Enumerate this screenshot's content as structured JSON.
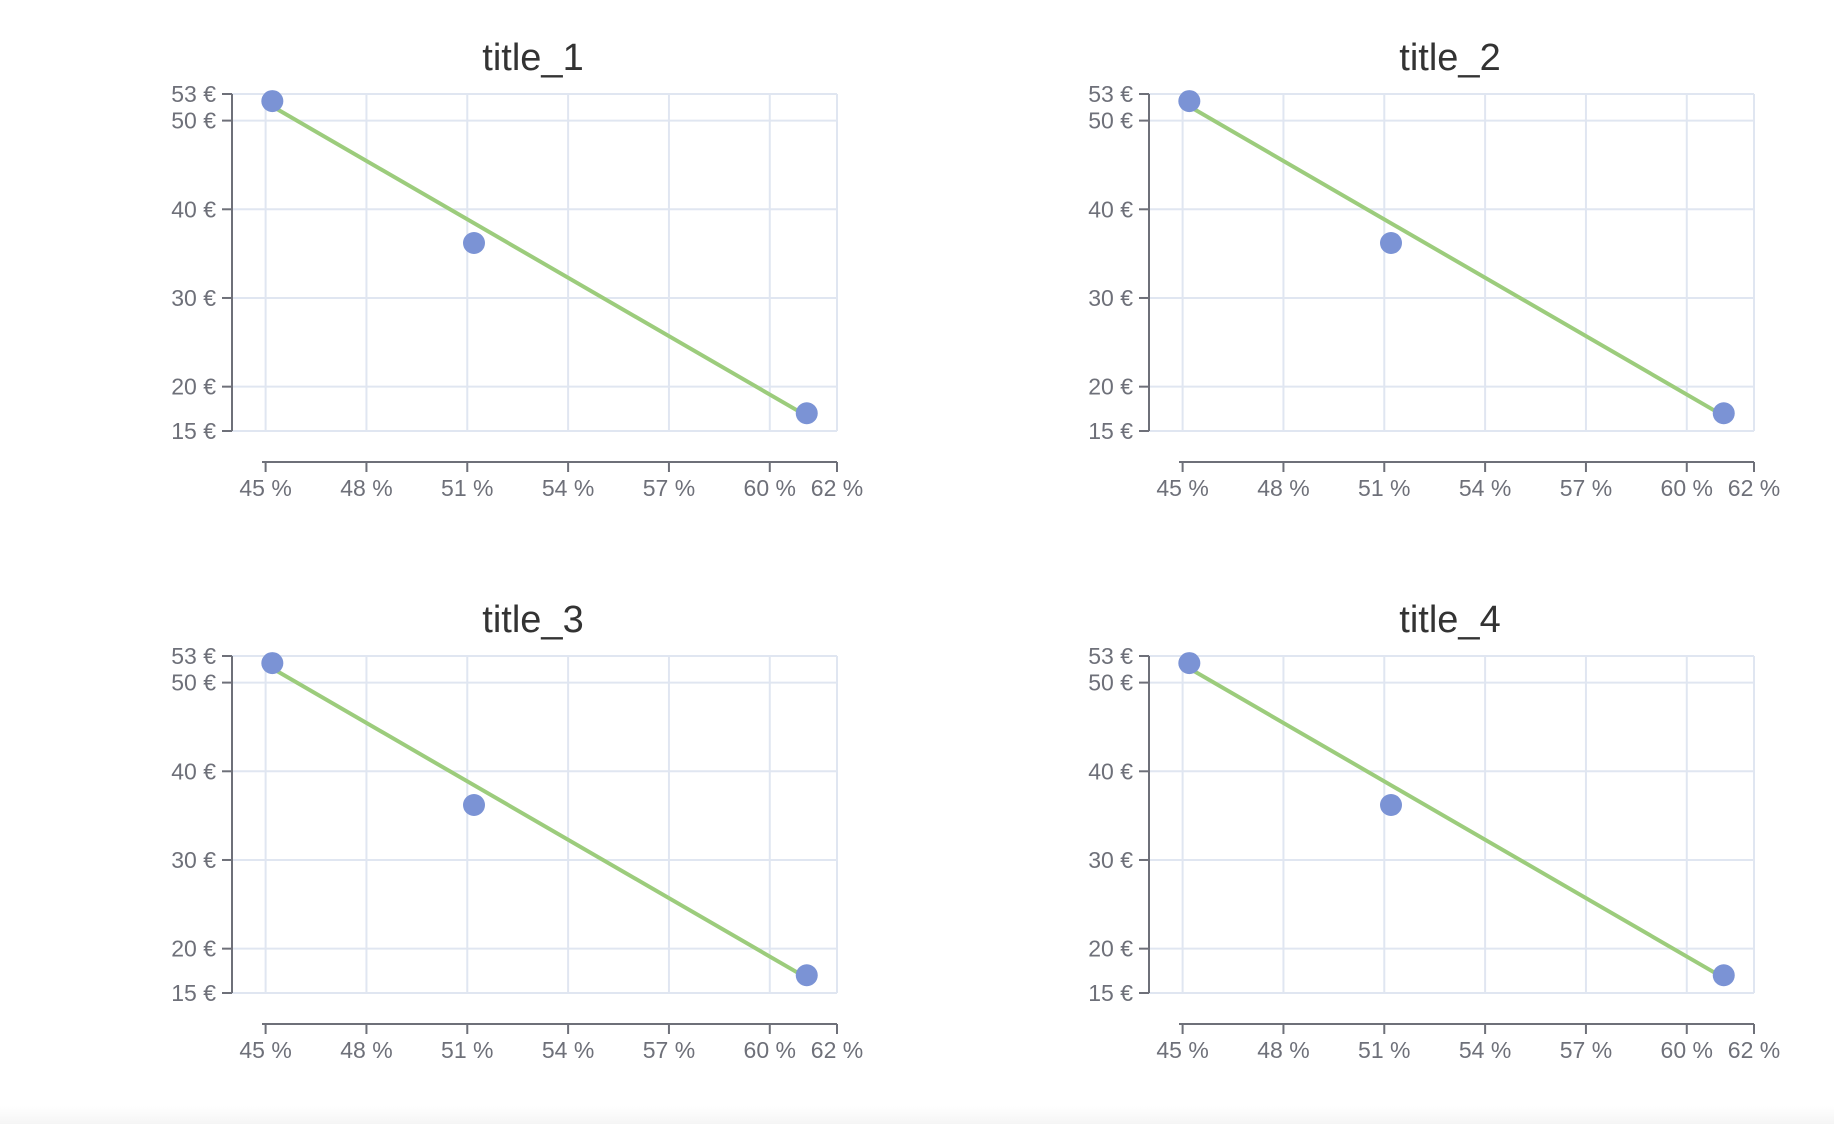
{
  "colors": {
    "point": "#7b93d5",
    "trendline": "#9ccc7c",
    "grid": "#e0e6f1",
    "axis": "#6e7079",
    "title": "#333333"
  },
  "chart_data": [
    {
      "type": "scatter",
      "title": "title_1",
      "x_ticks": [
        "45 %",
        "48 %",
        "51 %",
        "54 %",
        "57 %",
        "60 %",
        "62 %"
      ],
      "y_ticks": [
        "15 €",
        "20 €",
        "30 €",
        "40 €",
        "50 €",
        "53 €"
      ],
      "xlim": [
        44,
        62
      ],
      "ylim": [
        15,
        53
      ],
      "points": [
        {
          "x": 45.2,
          "y": 52.2
        },
        {
          "x": 51.2,
          "y": 36.2
        },
        {
          "x": 61.1,
          "y": 17.0
        }
      ],
      "trendline": [
        {
          "x": 45.2,
          "y": 51.6
        },
        {
          "x": 61.1,
          "y": 16.7
        }
      ],
      "grid": true,
      "legend": "none"
    },
    {
      "type": "scatter",
      "title": "title_2",
      "x_ticks": [
        "45 %",
        "48 %",
        "51 %",
        "54 %",
        "57 %",
        "60 %",
        "62 %"
      ],
      "y_ticks": [
        "15 €",
        "20 €",
        "30 €",
        "40 €",
        "50 €",
        "53 €"
      ],
      "xlim": [
        44,
        62
      ],
      "ylim": [
        15,
        53
      ],
      "points": [
        {
          "x": 45.2,
          "y": 52.2
        },
        {
          "x": 51.2,
          "y": 36.2
        },
        {
          "x": 61.1,
          "y": 17.0
        }
      ],
      "trendline": [
        {
          "x": 45.2,
          "y": 51.6
        },
        {
          "x": 61.1,
          "y": 16.7
        }
      ],
      "grid": true,
      "legend": "none"
    },
    {
      "type": "scatter",
      "title": "title_3",
      "x_ticks": [
        "45 %",
        "48 %",
        "51 %",
        "54 %",
        "57 %",
        "60 %",
        "62 %"
      ],
      "y_ticks": [
        "15 €",
        "20 €",
        "30 €",
        "40 €",
        "50 €",
        "53 €"
      ],
      "xlim": [
        44,
        62
      ],
      "ylim": [
        15,
        53
      ],
      "points": [
        {
          "x": 45.2,
          "y": 52.2
        },
        {
          "x": 51.2,
          "y": 36.2
        },
        {
          "x": 61.1,
          "y": 17.0
        }
      ],
      "trendline": [
        {
          "x": 45.2,
          "y": 51.6
        },
        {
          "x": 61.1,
          "y": 16.7
        }
      ],
      "grid": true,
      "legend": "none"
    },
    {
      "type": "scatter",
      "title": "title_4",
      "x_ticks": [
        "45 %",
        "48 %",
        "51 %",
        "54 %",
        "57 %",
        "60 %",
        "62 %"
      ],
      "y_ticks": [
        "15 €",
        "20 €",
        "30 €",
        "40 €",
        "50 €",
        "53 €"
      ],
      "xlim": [
        44,
        62
      ],
      "ylim": [
        15,
        53
      ],
      "points": [
        {
          "x": 45.2,
          "y": 52.2
        },
        {
          "x": 51.2,
          "y": 36.2
        },
        {
          "x": 61.1,
          "y": 17.0
        }
      ],
      "trendline": [
        {
          "x": 45.2,
          "y": 51.6
        },
        {
          "x": 61.1,
          "y": 16.7
        }
      ],
      "grid": true,
      "legend": "none"
    }
  ]
}
